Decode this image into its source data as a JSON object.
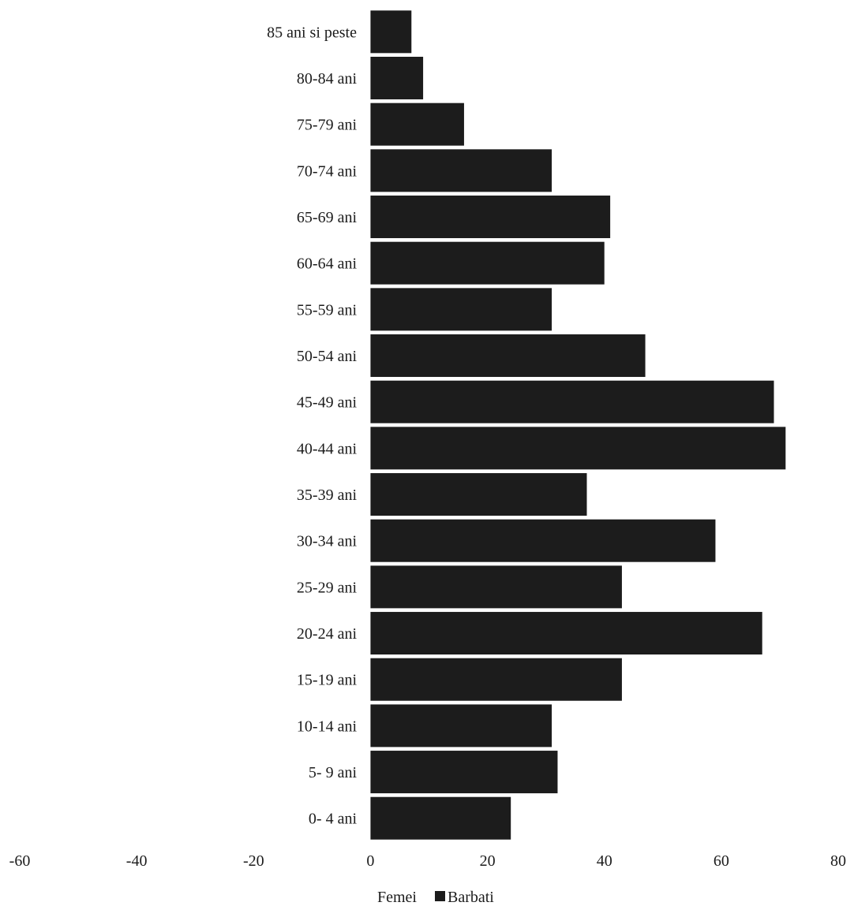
{
  "chart_data": {
    "type": "bar",
    "orientation": "horizontal",
    "categories": [
      "85 ani si peste",
      "80-84 ani",
      "75-79 ani",
      "70-74 ani",
      "65-69 ani",
      "60-64 ani",
      "55-59 ani",
      "50-54 ani",
      "45-49 ani",
      "40-44 ani",
      "35-39 ani",
      "30-34 ani",
      "25-29 ani",
      "20-24 ani",
      "15-19 ani",
      "10-14 ani",
      "5- 9 ani",
      "0- 4 ani"
    ],
    "series": [
      {
        "name": "Femei",
        "values": [
          0,
          0,
          0,
          0,
          0,
          0,
          0,
          0,
          0,
          0,
          0,
          0,
          0,
          0,
          0,
          0,
          0,
          0
        ],
        "color": "#ffffff"
      },
      {
        "name": "Barbati",
        "values": [
          7,
          9,
          16,
          31,
          41,
          40,
          31,
          47,
          69,
          71,
          37,
          59,
          43,
          67,
          43,
          31,
          32,
          24
        ],
        "color": "#1c1c1c"
      }
    ],
    "xlim": [
      -60,
      80
    ],
    "xticks": [
      -60,
      -40,
      -20,
      0,
      20,
      40,
      60,
      80
    ],
    "title": "",
    "xlabel": "",
    "ylabel": "",
    "grid": false,
    "legend_position": "bottom"
  },
  "colors": {
    "bar": "#1c1c1c",
    "text": "#1c1c1c",
    "background": "#ffffff"
  }
}
